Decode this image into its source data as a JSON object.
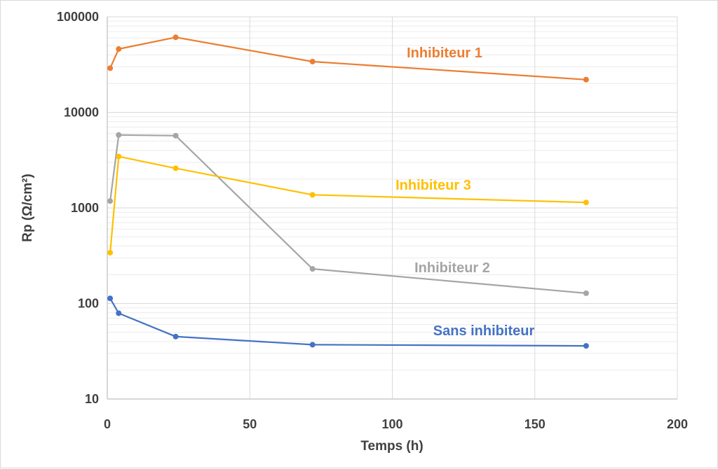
{
  "chart_data": {
    "type": "line",
    "title": "",
    "xlabel": "Temps (h)",
    "ylabel": "Rp (Ω/cm²)",
    "xlim": [
      0,
      200
    ],
    "ylim": [
      10,
      100000
    ],
    "yscale": "log",
    "grid": true,
    "legend": "inline labels",
    "x_ticks": [
      "0",
      "50",
      "100",
      "150",
      "200"
    ],
    "y_ticks": [
      "10",
      "100",
      "1000",
      "10000",
      "100000"
    ],
    "series": [
      {
        "name": "Inhibiteur 1",
        "color": "#ED7D31",
        "x": [
          1,
          4,
          24,
          72,
          168
        ],
        "values": [
          29000,
          46000,
          61000,
          34000,
          22000
        ]
      },
      {
        "name": "Inhibiteur 2",
        "color": "#A5A5A5",
        "x": [
          1,
          4,
          24,
          72,
          168
        ],
        "values": [
          1180,
          5800,
          5700,
          230,
          128
        ]
      },
      {
        "name": "Inhibiteur 3",
        "color": "#FFC000",
        "x": [
          1,
          4,
          24,
          72,
          168
        ],
        "values": [
          340,
          3450,
          2600,
          1370,
          1140
        ]
      },
      {
        "name": "Sans inhibiteur",
        "color": "#4472C4",
        "x": [
          1,
          4,
          24,
          72,
          168
        ],
        "values": [
          113,
          79,
          45,
          37,
          36
        ]
      }
    ]
  }
}
